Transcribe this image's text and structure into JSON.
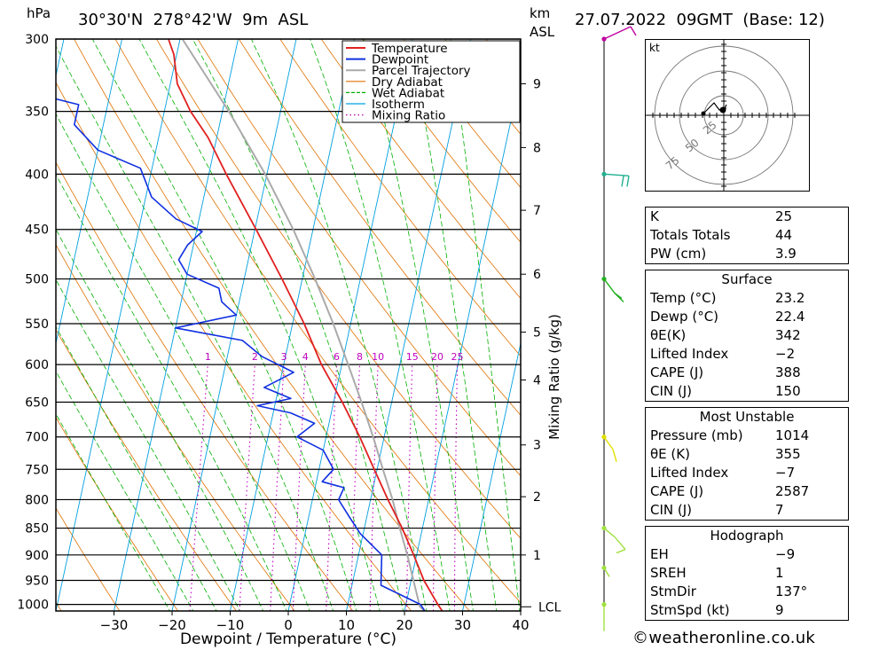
{
  "header": {
    "pressure_unit": "hPa",
    "location": "30°30'N  278°42'W  9m  ASL",
    "km_unit": "km",
    "asl_unit": "ASL",
    "datetime": "27.07.2022  09GMT  (Base: 12)"
  },
  "chart_data": {
    "type": "line",
    "xlabel": "Dewpoint / Temperature (°C)",
    "ylabel": "hPa",
    "xlim": [
      -40,
      40
    ],
    "ylim": [
      1014,
      300
    ],
    "x_ticks": [
      -30,
      -20,
      -10,
      0,
      10,
      20,
      30,
      40
    ],
    "pressure_levels": [
      300,
      350,
      400,
      450,
      500,
      550,
      600,
      650,
      700,
      750,
      800,
      850,
      900,
      950,
      1000
    ],
    "height_axis": {
      "label": "km",
      "sublabel": "ASL",
      "ticks": [
        {
          "km": 1,
          "p": 900
        },
        {
          "km": 2,
          "p": 795
        },
        {
          "km": 3,
          "p": 712
        },
        {
          "km": 4,
          "p": 620
        },
        {
          "km": 5,
          "p": 560
        },
        {
          "km": 6,
          "p": 495
        },
        {
          "km": 7,
          "p": 432
        },
        {
          "km": 8,
          "p": 378
        },
        {
          "km": 9,
          "p": 330
        }
      ],
      "lcl_label": "LCL",
      "lcl_p": 1005
    },
    "mixing_ratio_axis_label": "Mixing Ratio (g/kg)",
    "mixing_ratio_values": [
      1,
      2,
      3,
      4,
      6,
      8,
      10,
      15,
      20,
      25
    ],
    "legend": {
      "placement": "top-right",
      "entries": [
        {
          "name": "Temperature",
          "color": "#e02020"
        },
        {
          "name": "Dewpoint",
          "color": "#1030e0"
        },
        {
          "name": "Parcel Trajectory",
          "color": "#aaaaaa"
        },
        {
          "name": "Dry Adiabat",
          "color": "#e07000"
        },
        {
          "name": "Wet Adiabat",
          "color": "#00b000"
        },
        {
          "name": "Isotherm",
          "color": "#00a0e0"
        },
        {
          "name": "Mixing Ratio",
          "color": "#c000c0"
        }
      ]
    },
    "series": [
      {
        "name": "Temperature",
        "points": [
          [
            1014,
            26.5
          ],
          [
            1000,
            25.5
          ],
          [
            950,
            22.2
          ],
          [
            900,
            19.5
          ],
          [
            850,
            16.5
          ],
          [
            800,
            13.0
          ],
          [
            750,
            9.5
          ],
          [
            700,
            5.8
          ],
          [
            650,
            1.5
          ],
          [
            600,
            -3.5
          ],
          [
            550,
            -8.0
          ],
          [
            500,
            -13.5
          ],
          [
            450,
            -19.8
          ],
          [
            400,
            -27.0
          ],
          [
            370,
            -31.5
          ],
          [
            350,
            -35.5
          ],
          [
            330,
            -38.8
          ],
          [
            310,
            -40.5
          ],
          [
            300,
            -42.0
          ]
        ]
      },
      {
        "name": "Dewpoint",
        "points": [
          [
            1014,
            23.5
          ],
          [
            1000,
            22.5
          ],
          [
            960,
            15.0
          ],
          [
            930,
            14.5
          ],
          [
            900,
            14.0
          ],
          [
            860,
            9.5
          ],
          [
            830,
            7.0
          ],
          [
            800,
            4.5
          ],
          [
            780,
            5.0
          ],
          [
            770,
            1.0
          ],
          [
            750,
            2.5
          ],
          [
            720,
            0.0
          ],
          [
            700,
            -5.0
          ],
          [
            680,
            -2.5
          ],
          [
            665,
            -7.0
          ],
          [
            655,
            -13.0
          ],
          [
            645,
            -7.5
          ],
          [
            630,
            -12.5
          ],
          [
            610,
            -8.0
          ],
          [
            590,
            -14.0
          ],
          [
            570,
            -18.0
          ],
          [
            555,
            -30.0
          ],
          [
            540,
            -20.0
          ],
          [
            525,
            -23.0
          ],
          [
            510,
            -24.0
          ],
          [
            495,
            -30.0
          ],
          [
            480,
            -32.0
          ],
          [
            465,
            -31.0
          ],
          [
            452,
            -29.0
          ],
          [
            440,
            -34.0
          ],
          [
            420,
            -39.0
          ],
          [
            395,
            -42.0
          ],
          [
            380,
            -50.0
          ],
          [
            360,
            -55.0
          ],
          [
            345,
            -55.0
          ],
          [
            330,
            -70.0
          ],
          [
            310,
            -70.0
          ],
          [
            302,
            -63.0
          ]
        ]
      },
      {
        "name": "Parcel Trajectory",
        "points": [
          [
            1014,
            23.5
          ],
          [
            1005,
            22.5
          ],
          [
            950,
            20.4
          ],
          [
            900,
            18.4
          ],
          [
            850,
            16.1
          ],
          [
            800,
            13.8
          ],
          [
            750,
            11.0
          ],
          [
            700,
            8.1
          ],
          [
            650,
            4.8
          ],
          [
            600,
            1.1
          ],
          [
            550,
            -3.0
          ],
          [
            500,
            -7.8
          ],
          [
            450,
            -13.4
          ],
          [
            400,
            -20.3
          ],
          [
            350,
            -28.9
          ],
          [
            300,
            -39.6
          ]
        ]
      }
    ],
    "wind_barbs": [
      {
        "p": 300,
        "color": "#c000a0"
      },
      {
        "p": 400,
        "color": "#20b090"
      },
      {
        "p": 500,
        "color": "#20b020"
      },
      {
        "p": 700,
        "color": "#e0e000"
      },
      {
        "p": 850,
        "color": "#a0e040"
      },
      {
        "p": 925,
        "color": "#a0e040"
      },
      {
        "p": 1000,
        "color": "#a0e040"
      }
    ]
  },
  "hodograph": {
    "unit_label": "kt",
    "ring_labels": [
      "25",
      "50",
      "75"
    ]
  },
  "indices": {
    "rows": [
      {
        "label": "K",
        "value": "25"
      },
      {
        "label": "Totals Totals",
        "value": "44"
      },
      {
        "label": "PW (cm)",
        "value": "3.9"
      }
    ]
  },
  "surface": {
    "title": "Surface",
    "rows": [
      {
        "label": "Temp (°C)",
        "value": "23.2"
      },
      {
        "label": "Dewp (°C)",
        "value": "22.4"
      },
      {
        "label": "θE(K)",
        "value": "342"
      },
      {
        "label": "Lifted Index",
        "value": "−2"
      },
      {
        "label": "CAPE (J)",
        "value": "388"
      },
      {
        "label": "CIN (J)",
        "value": "150"
      }
    ]
  },
  "most_unstable": {
    "title": "Most Unstable",
    "rows": [
      {
        "label": "Pressure (mb)",
        "value": "1014"
      },
      {
        "label": "θE (K)",
        "value": "355"
      },
      {
        "label": "Lifted Index",
        "value": "−7"
      },
      {
        "label": "CAPE (J)",
        "value": "2587"
      },
      {
        "label": "CIN (J)",
        "value": "7"
      }
    ]
  },
  "hodograph_table": {
    "title": "Hodograph",
    "rows": [
      {
        "label": "EH",
        "value": "−9"
      },
      {
        "label": "SREH",
        "value": "1"
      },
      {
        "label": "StmDir",
        "value": "137°"
      },
      {
        "label": "StmSpd (kt)",
        "value": "9"
      }
    ]
  },
  "footer": {
    "copyright_symbol": "©",
    "site": "weatheronline.co.uk"
  }
}
